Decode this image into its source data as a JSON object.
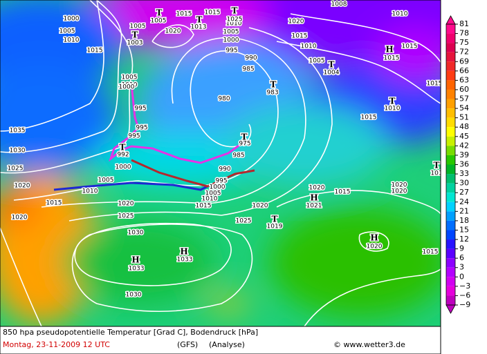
{
  "map": {
    "labels": [
      "1000",
      "1005",
      "1010",
      "1015",
      "1005",
      "1010",
      "1000",
      "995",
      "995",
      "995",
      "T",
      "992",
      "1000",
      "1005",
      "1010",
      "1015",
      "1020",
      "1025",
      "1030",
      "1035",
      "1020",
      "1020",
      "1025",
      "1030",
      "H",
      "1033",
      "H",
      "1033",
      "1030",
      "1015",
      "1010",
      "1005",
      "1000",
      "995",
      "990",
      "985",
      "T",
      "975",
      "980",
      "985",
      "990",
      "995",
      "1000",
      "1005",
      "1010",
      "1015",
      "1015",
      "T",
      "1005",
      "1020",
      "T",
      "1013",
      "T",
      "1025",
      "T",
      "1003",
      "1005",
      "1015",
      "1010",
      "1020",
      "1005",
      "T",
      "1004",
      "T",
      "983",
      "H",
      "1015",
      "1015",
      "1010",
      "1008",
      "T",
      "1010",
      "1015",
      "1015",
      "T",
      "101",
      "1020",
      "1020",
      "1015",
      "1020",
      "H",
      "1021",
      "1020",
      "T",
      "1019",
      "1025",
      "H",
      "1020",
      "1015"
    ]
  },
  "colorbar": {
    "ticks": [
      81,
      78,
      75,
      72,
      69,
      66,
      63,
      60,
      57,
      54,
      51,
      48,
      45,
      42,
      39,
      36,
      33,
      30,
      27,
      24,
      21,
      18,
      15,
      12,
      9,
      6,
      3,
      0,
      {
        "value": -3,
        "label": "−3"
      },
      {
        "value": -6,
        "label": "−6"
      },
      {
        "value": -9,
        "label": "−9"
      }
    ],
    "colors": [
      "#ff0a8c",
      "#f0006e",
      "#dc0050",
      "#e6143c",
      "#f02828",
      "#ff3c14",
      "#ff6400",
      "#ff8200",
      "#ffa000",
      "#ffbe00",
      "#ffdc00",
      "#ffff00",
      "#c8f000",
      "#78dc00",
      "#28c800",
      "#00b428",
      "#00be6e",
      "#00d2a0",
      "#00e6d2",
      "#00d2ff",
      "#00a0ff",
      "#006eff",
      "#0046ff",
      "#2814ff",
      "#5a00ff",
      "#8c00ff",
      "#b400ff",
      "#d200f0",
      "#e600dc",
      "#be00be"
    ]
  },
  "footer": {
    "caption": "850 hpa pseudopotentielle Temperatur [Grad C], Bodendruck [hPa]",
    "date": "Montag, 23-11-2009  12 UTC",
    "model": "(GFS)",
    "run": "(Analyse)",
    "source": "© www.wetter3.de"
  }
}
